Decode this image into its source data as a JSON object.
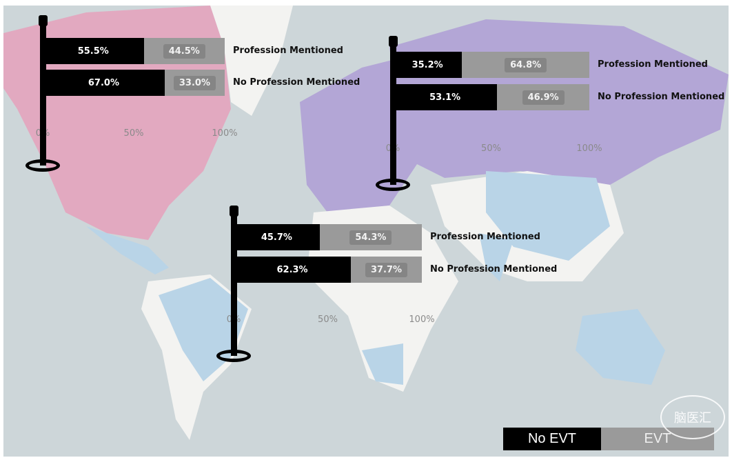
{
  "chart_data": {
    "type": "bar",
    "stacked": true,
    "orientation": "horizontal",
    "xlim": [
      0,
      100
    ],
    "x_ticks": [
      "0%",
      "50%",
      "100%"
    ],
    "legend": {
      "position": "bottom-right",
      "entries": [
        {
          "name": "No EVT",
          "color": "#000000"
        },
        {
          "name": "EVT",
          "color": "#9a9a9a"
        }
      ]
    },
    "categories": [
      "Profession Mentioned",
      "No Profession Mentioned"
    ],
    "charts": [
      {
        "series": [
          {
            "name": "No EVT",
            "values": [
              55.5,
              67.0
            ],
            "labels": [
              "55.5%",
              "67.0%"
            ]
          },
          {
            "name": "EVT",
            "values": [
              44.5,
              33.0
            ],
            "labels": [
              "44.5%",
              "33.0%"
            ]
          }
        ]
      },
      {
        "series": [
          {
            "name": "No EVT",
            "values": [
              35.2,
              53.1
            ],
            "labels": [
              "35.2%",
              "53.1%"
            ]
          },
          {
            "name": "EVT",
            "values": [
              64.8,
              46.9
            ],
            "labels": [
              "64.8%",
              "46.9%"
            ]
          }
        ]
      },
      {
        "series": [
          {
            "name": "No EVT",
            "values": [
              45.7,
              62.3
            ],
            "labels": [
              "45.7%",
              "62.3%"
            ]
          },
          {
            "name": "EVT",
            "values": [
              54.3,
              37.7
            ],
            "labels": [
              "54.3%",
              "37.7%"
            ]
          }
        ]
      }
    ]
  },
  "watermark": "脑医汇"
}
